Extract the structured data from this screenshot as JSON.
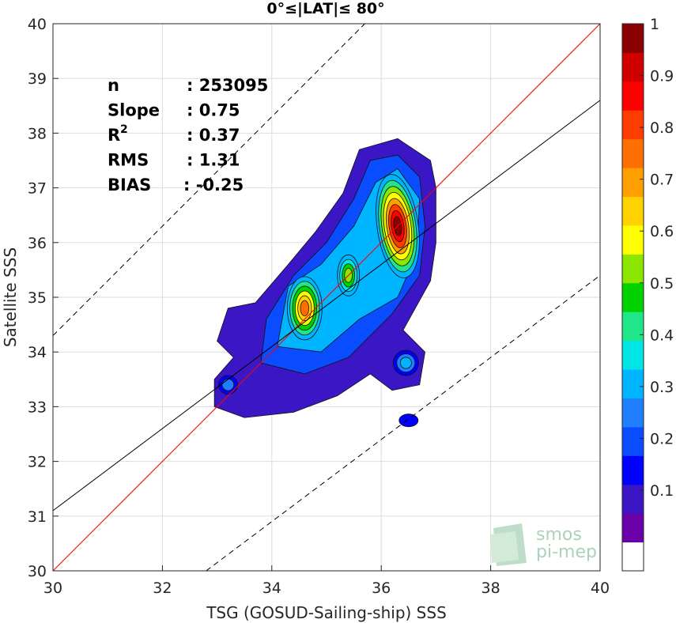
{
  "chart_data": {
    "type": "contour",
    "title": "0°≤|LAT|≤ 80°",
    "xlabel": "TSG (GOSUD-Sailing-ship) SSS",
    "ylabel": "Satellite SSS",
    "xlim": [
      30,
      40
    ],
    "ylim": [
      30,
      40
    ],
    "xticks": [
      "30",
      "32",
      "34",
      "36",
      "38",
      "40"
    ],
    "yticks": [
      "30",
      "31",
      "32",
      "33",
      "34",
      "35",
      "36",
      "37",
      "38",
      "39",
      "40"
    ],
    "grid": true,
    "stats": [
      {
        "label": "n",
        "value": ": 253095"
      },
      {
        "label": "Slope",
        "value": ": 0.75"
      },
      {
        "label": "R",
        "sup": "2",
        "value": ": 0.37"
      },
      {
        "label": "RMS",
        "value": ": 1.31"
      },
      {
        "label": "BIAS",
        "value": ": -0.25"
      }
    ],
    "lines": {
      "one_to_one": {
        "color": "#ff0000",
        "slope": 1,
        "intercept": 0
      },
      "fit": {
        "color": "#000000",
        "slope": 0.75,
        "x0": 30,
        "y0": 31.1
      },
      "envelope_offset": 4.3
    },
    "density_peaks": [
      {
        "x": 36.3,
        "y": 36.3,
        "level": 1.0
      },
      {
        "x": 34.6,
        "y": 34.8,
        "level": 0.75
      },
      {
        "x": 35.4,
        "y": 35.4,
        "level": 0.55
      },
      {
        "x": 36.45,
        "y": 33.8,
        "level": 0.4
      },
      {
        "x": 33.2,
        "y": 33.4,
        "level": 0.25
      },
      {
        "x": 36.5,
        "y": 32.75,
        "level": 0.15
      }
    ],
    "colorbar": {
      "ticks": [
        "0.1",
        "0.2",
        "0.3",
        "0.4",
        "0.5",
        "0.6",
        "0.7",
        "0.8",
        "0.9",
        "1"
      ],
      "colors": [
        "#ffffff",
        "#6a00a8",
        "#3a16c4",
        "#0000ff",
        "#0a4cff",
        "#1f7fff",
        "#00b5ff",
        "#00e6e6",
        "#20e68a",
        "#00d200",
        "#8ce600",
        "#ffff00",
        "#ffd200",
        "#ffa000",
        "#ff6e00",
        "#ff3c00",
        "#ff0000",
        "#d00000",
        "#8b0000"
      ]
    }
  },
  "watermark": {
    "line1": "smos",
    "line2": "pi-mep"
  }
}
